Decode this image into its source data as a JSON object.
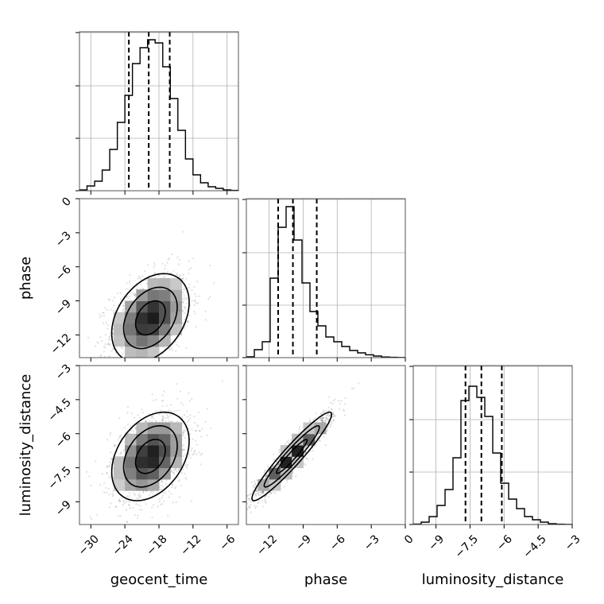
{
  "chart_data": {
    "type": "corner",
    "parameters": [
      {
        "name": "geocent_time",
        "label": "geocent_time",
        "range": [
          -32,
          -4
        ],
        "ticks": [
          -30,
          -24,
          -18,
          -12,
          -6
        ]
      },
      {
        "name": "phase",
        "label": "phase",
        "range": [
          -14,
          0
        ],
        "ticks": [
          -12,
          -9,
          -6,
          -3,
          0
        ]
      },
      {
        "name": "luminosity_distance",
        "label": "luminosity_distance",
        "range": [
          -10,
          -3
        ],
        "ticks": [
          -9.0,
          -7.5,
          -6.0,
          -4.5,
          -3.0
        ]
      }
    ],
    "histograms": [
      {
        "parameter": "geocent_time",
        "bin_edges": [
          -32,
          -30.67,
          -29.33,
          -28,
          -26.67,
          -25.33,
          -24,
          -22.67,
          -21.33,
          -20,
          -18.67,
          -17.33,
          -16,
          -14.67,
          -13.33,
          -12,
          -10.67,
          -9.33,
          -8,
          -6.67,
          -5.33,
          -4
        ],
        "counts": [
          0.005,
          0.03,
          0.06,
          0.13,
          0.26,
          0.43,
          0.6,
          0.8,
          0.9,
          0.95,
          0.93,
          0.78,
          0.58,
          0.38,
          0.2,
          0.1,
          0.05,
          0.025,
          0.015,
          0.005,
          0.002
        ],
        "quantiles": [
          -23.3,
          -19.8,
          -16.1
        ]
      },
      {
        "parameter": "phase",
        "bin_edges": [
          -14,
          -13.3,
          -12.6,
          -11.9,
          -11.2,
          -10.5,
          -9.8,
          -9.1,
          -8.4,
          -7.7,
          -7.0,
          -6.3,
          -5.6,
          -4.9,
          -4.2,
          -3.5,
          -2.8,
          -2.1,
          -1.4,
          -0.7,
          0
        ],
        "counts": [
          0.005,
          0.05,
          0.1,
          0.5,
          0.82,
          0.95,
          0.74,
          0.47,
          0.29,
          0.2,
          0.13,
          0.1,
          0.07,
          0.045,
          0.03,
          0.018,
          0.01,
          0.004,
          0.002,
          0.001
        ],
        "quantiles": [
          -11.2,
          -9.9,
          -7.8
        ]
      },
      {
        "parameter": "luminosity_distance",
        "bin_edges": [
          -10,
          -9.65,
          -9.3,
          -8.95,
          -8.6,
          -8.25,
          -7.9,
          -7.55,
          -7.2,
          -6.85,
          -6.5,
          -6.15,
          -5.8,
          -5.45,
          -5.1,
          -4.75,
          -4.4,
          -4.05,
          -3.7,
          -3.35,
          -3
        ],
        "counts": [
          0.003,
          0.015,
          0.05,
          0.12,
          0.22,
          0.42,
          0.78,
          0.87,
          0.8,
          0.68,
          0.45,
          0.26,
          0.16,
          0.1,
          0.05,
          0.03,
          0.015,
          0.005,
          0.002,
          0.001
        ],
        "quantiles": [
          -7.7,
          -7.0,
          -6.1
        ]
      }
    ],
    "joint_distributions": [
      {
        "x": "geocent_time",
        "y": "phase",
        "center": [
          -19.5,
          -10.5
        ],
        "sd": [
          3.5,
          2.0
        ],
        "rho": 0.35
      },
      {
        "x": "geocent_time",
        "y": "luminosity_distance",
        "center": [
          -19.5,
          -7.0
        ],
        "sd": [
          3.5,
          1.0
        ],
        "rho": 0.35
      },
      {
        "x": "phase",
        "y": "luminosity_distance",
        "center": [
          -10.0,
          -7.0
        ],
        "sd": [
          1.8,
          1.0
        ],
        "rho": 0.95
      }
    ],
    "grid": true,
    "quantile_style": "dashed"
  }
}
